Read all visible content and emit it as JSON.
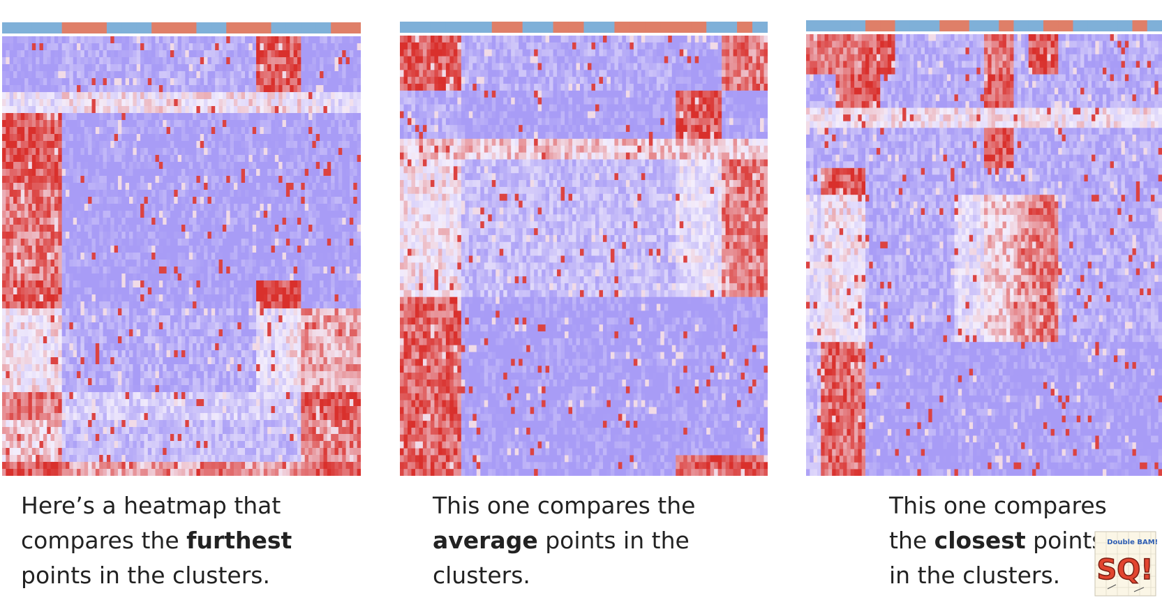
{
  "colors": {
    "low": "#a89cf6",
    "mid": "#f4eefc",
    "high": "#d9302c",
    "bar_blue": "#7fb0d8",
    "bar_orange": "#df7f68"
  },
  "captions": [
    {
      "before": "Here’s a heatmap that",
      "line2_pre": "compares the ",
      "bold": "furthest",
      "line2_post": "",
      "line3": "points in the clusters."
    },
    {
      "before": "This one compares the",
      "line2_pre": "",
      "bold": "average",
      "line2_post": " points in the",
      "line3": "clusters."
    },
    {
      "before": "This one compares",
      "line2_pre": "the ",
      "bold": "closest",
      "line2_post": " points",
      "line3": "in the clusters."
    }
  ],
  "logo": {
    "top_text": "Double BAM!!",
    "main_text": "SQ!"
  },
  "chart_data": [
    {
      "type": "heatmap",
      "title": "",
      "linkage": "furthest",
      "column_bar": [
        "b",
        "b",
        "b",
        "b",
        "o",
        "o",
        "o",
        "b",
        "b",
        "b",
        "o",
        "o",
        "o",
        "b",
        "b",
        "o",
        "o",
        "o",
        "b",
        "b",
        "b",
        "b",
        "o",
        "o"
      ],
      "row_blocks": [
        {
          "rows": 8,
          "pattern": [
            0,
            0,
            0,
            0,
            0.1,
            0.1,
            0.1,
            0.1,
            0.1,
            0.1,
            0.1,
            0.1,
            0.1,
            0.1,
            0.1,
            0.1,
            0.1,
            0.9,
            0.9,
            0.9,
            0,
            0,
            0,
            0
          ]
        },
        {
          "rows": 3,
          "pattern": [
            0.4,
            0.4,
            0.4,
            0.4,
            0.5,
            0.5,
            0.5,
            0.5,
            0.5,
            0.5,
            0.5,
            0.5,
            0.5,
            0.5,
            0.5,
            0.5,
            0.5,
            0.5,
            0.5,
            0.5,
            0.5,
            0.4,
            0.4,
            0.4
          ]
        },
        {
          "rows": 10,
          "pattern": [
            0.9,
            0.9,
            0.9,
            0.9,
            0,
            0,
            0,
            0,
            0,
            0,
            0,
            0,
            0,
            0,
            0,
            0,
            0,
            0,
            0,
            0,
            0,
            0,
            0,
            0
          ]
        },
        {
          "rows": 14,
          "pattern": [
            0.8,
            0.8,
            0.8,
            0.8,
            0,
            0,
            0,
            0,
            0,
            0,
            0,
            0,
            0,
            0,
            0,
            0,
            0,
            0,
            0,
            0,
            0,
            0,
            0,
            0
          ]
        },
        {
          "rows": 4,
          "pattern": [
            0.9,
            0.9,
            0.9,
            0.9,
            0,
            0,
            0,
            0,
            0,
            0,
            0,
            0,
            0,
            0,
            0,
            0,
            0,
            0.95,
            0.95,
            0.95,
            0,
            0,
            0,
            0
          ]
        },
        {
          "rows": 12,
          "pattern": [
            0.5,
            0.5,
            0.5,
            0.5,
            0.1,
            0.1,
            0.1,
            0.1,
            0.1,
            0.1,
            0.1,
            0.1,
            0.1,
            0.1,
            0.1,
            0.1,
            0.1,
            0.4,
            0.4,
            0.5,
            0.7,
            0.7,
            0.7,
            0.7
          ]
        },
        {
          "rows": 4,
          "pattern": [
            0.8,
            0.8,
            0.8,
            0.8,
            0.3,
            0.3,
            0.3,
            0.3,
            0.3,
            0.3,
            0.3,
            0.3,
            0.3,
            0.3,
            0.3,
            0.3,
            0.3,
            0.3,
            0.3,
            0.3,
            0.9,
            0.9,
            0.9,
            0.9
          ]
        },
        {
          "rows": 6,
          "pattern": [
            0.6,
            0.6,
            0.6,
            0.6,
            0.2,
            0.2,
            0.2,
            0.2,
            0.2,
            0.2,
            0.2,
            0.2,
            0.2,
            0.2,
            0.2,
            0.2,
            0.2,
            0.2,
            0.2,
            0.2,
            0.8,
            0.8,
            0.8,
            0.8
          ]
        },
        {
          "rows": 2,
          "pattern": [
            0.9,
            0.9,
            0.9,
            0.9,
            0.7,
            0.7,
            0.7,
            0.7,
            0.7,
            0.7,
            0.7,
            0.7,
            0.7,
            0.9,
            0.9,
            0.7,
            0.7,
            0.7,
            0.7,
            0.7,
            0.9,
            0.9,
            0.9,
            0.9
          ]
        }
      ]
    },
    {
      "type": "heatmap",
      "title": "",
      "linkage": "average",
      "column_bar": [
        "b",
        "b",
        "b",
        "b",
        "b",
        "b",
        "o",
        "o",
        "b",
        "b",
        "o",
        "o",
        "b",
        "b",
        "o",
        "o",
        "o",
        "o",
        "o",
        "o",
        "b",
        "b",
        "o",
        "b"
      ],
      "row_blocks": [
        {
          "rows": 8,
          "pattern": [
            0.9,
            0.9,
            0.9,
            0.9,
            0.1,
            0.1,
            0.1,
            0.1,
            0.1,
            0.1,
            0.1,
            0.1,
            0.1,
            0.1,
            0.1,
            0.1,
            0.1,
            0.1,
            0,
            0,
            0,
            0.8,
            0.8,
            0.8
          ]
        },
        {
          "rows": 7,
          "pattern": [
            0.1,
            0.1,
            0.1,
            0.1,
            0,
            0,
            0,
            0,
            0,
            0,
            0,
            0,
            0,
            0,
            0,
            0,
            0,
            0,
            0.9,
            0.9,
            0.9,
            0,
            0,
            0
          ]
        },
        {
          "rows": 3,
          "pattern": [
            0.6,
            0.6,
            0.6,
            0.6,
            0.6,
            0.6,
            0.6,
            0.6,
            0.6,
            0.6,
            0.6,
            0.6,
            0.6,
            0.6,
            0.6,
            0.6,
            0.6,
            0.6,
            0.6,
            0.6,
            0.6,
            0.6,
            0.6,
            0.6
          ]
        },
        {
          "rows": 20,
          "pattern": [
            0.5,
            0.5,
            0.5,
            0.5,
            0.2,
            0.2,
            0.2,
            0.2,
            0.2,
            0.2,
            0.2,
            0.2,
            0.2,
            0.2,
            0.2,
            0.2,
            0.2,
            0.2,
            0.4,
            0.4,
            0.4,
            0.8,
            0.8,
            0.8
          ]
        },
        {
          "rows": 23,
          "pattern": [
            0.85,
            0.85,
            0.85,
            0.85,
            0,
            0,
            0,
            0,
            0,
            0,
            0,
            0,
            0,
            0,
            0,
            0,
            0,
            0,
            0,
            0,
            0,
            0,
            0,
            0
          ]
        },
        {
          "rows": 3,
          "pattern": [
            0.9,
            0.9,
            0.9,
            0.9,
            0,
            0,
            0,
            0,
            0,
            0,
            0,
            0,
            0,
            0,
            0,
            0,
            0,
            0,
            0.9,
            0.9,
            0.9,
            0.9,
            0.9,
            0.9
          ]
        }
      ]
    },
    {
      "type": "heatmap",
      "title": "",
      "linkage": "closest",
      "column_bar": [
        "b",
        "b",
        "b",
        "b",
        "o",
        "o",
        "b",
        "b",
        "b",
        "o",
        "o",
        "b",
        "b",
        "o",
        "b",
        "b",
        "o",
        "o",
        "b",
        "b",
        "b",
        "b",
        "o",
        "b"
      ],
      "row_blocks": [
        {
          "rows": 6,
          "pattern": [
            0.8,
            0.8,
            0.8,
            0.8,
            0.9,
            0.9,
            0.1,
            0.1,
            0.1,
            0.1,
            0.1,
            0.1,
            0.8,
            0.8,
            0.1,
            0.9,
            0.9,
            0.1,
            0.1,
            0.1,
            0.1,
            0.1,
            0.1,
            0.1
          ]
        },
        {
          "rows": 5,
          "pattern": [
            0.1,
            0.1,
            0.9,
            0.9,
            0.9,
            0.1,
            0.1,
            0.1,
            0.1,
            0.1,
            0.1,
            0.1,
            0.9,
            0.9,
            0.1,
            0.1,
            0.1,
            0.1,
            0.1,
            0.1,
            0.1,
            0.1,
            0.1,
            0.1
          ]
        },
        {
          "rows": 3,
          "pattern": [
            0.5,
            0.5,
            0.5,
            0.5,
            0.5,
            0.5,
            0.5,
            0.5,
            0.5,
            0.5,
            0.5,
            0.5,
            0.5,
            0.5,
            0.5,
            0.5,
            0.5,
            0.5,
            0.5,
            0.5,
            0.5,
            0.5,
            0.5,
            0.5
          ]
        },
        {
          "rows": 6,
          "pattern": [
            0.1,
            0.1,
            0.1,
            0.1,
            0.1,
            0.1,
            0.1,
            0.1,
            0.1,
            0.1,
            0.1,
            0.1,
            0.9,
            0.9,
            0.1,
            0.1,
            0.1,
            0.1,
            0.1,
            0.1,
            0.1,
            0.1,
            0.1,
            0.1
          ]
        },
        {
          "rows": 4,
          "pattern": [
            0.2,
            0.9,
            0.9,
            0.9,
            0.1,
            0.1,
            0.1,
            0.1,
            0.1,
            0.1,
            0.1,
            0.1,
            0.1,
            0.1,
            0.1,
            0.1,
            0.1,
            0.1,
            0.1,
            0.1,
            0.1,
            0.1,
            0.1,
            0.1
          ]
        },
        {
          "rows": 22,
          "pattern": [
            0.4,
            0.5,
            0.5,
            0.5,
            0.1,
            0.1,
            0.1,
            0.1,
            0.1,
            0.1,
            0.4,
            0.4,
            0.6,
            0.6,
            0.7,
            0.8,
            0.8,
            0.1,
            0.1,
            0.1,
            0.1,
            0.1,
            0.1,
            0.1
          ]
        },
        {
          "rows": 20,
          "pattern": [
            0.2,
            0.85,
            0.85,
            0.85,
            0,
            0,
            0,
            0,
            0,
            0,
            0,
            0,
            0,
            0,
            0,
            0,
            0,
            0,
            0,
            0,
            0,
            0,
            0,
            0
          ]
        }
      ]
    }
  ]
}
